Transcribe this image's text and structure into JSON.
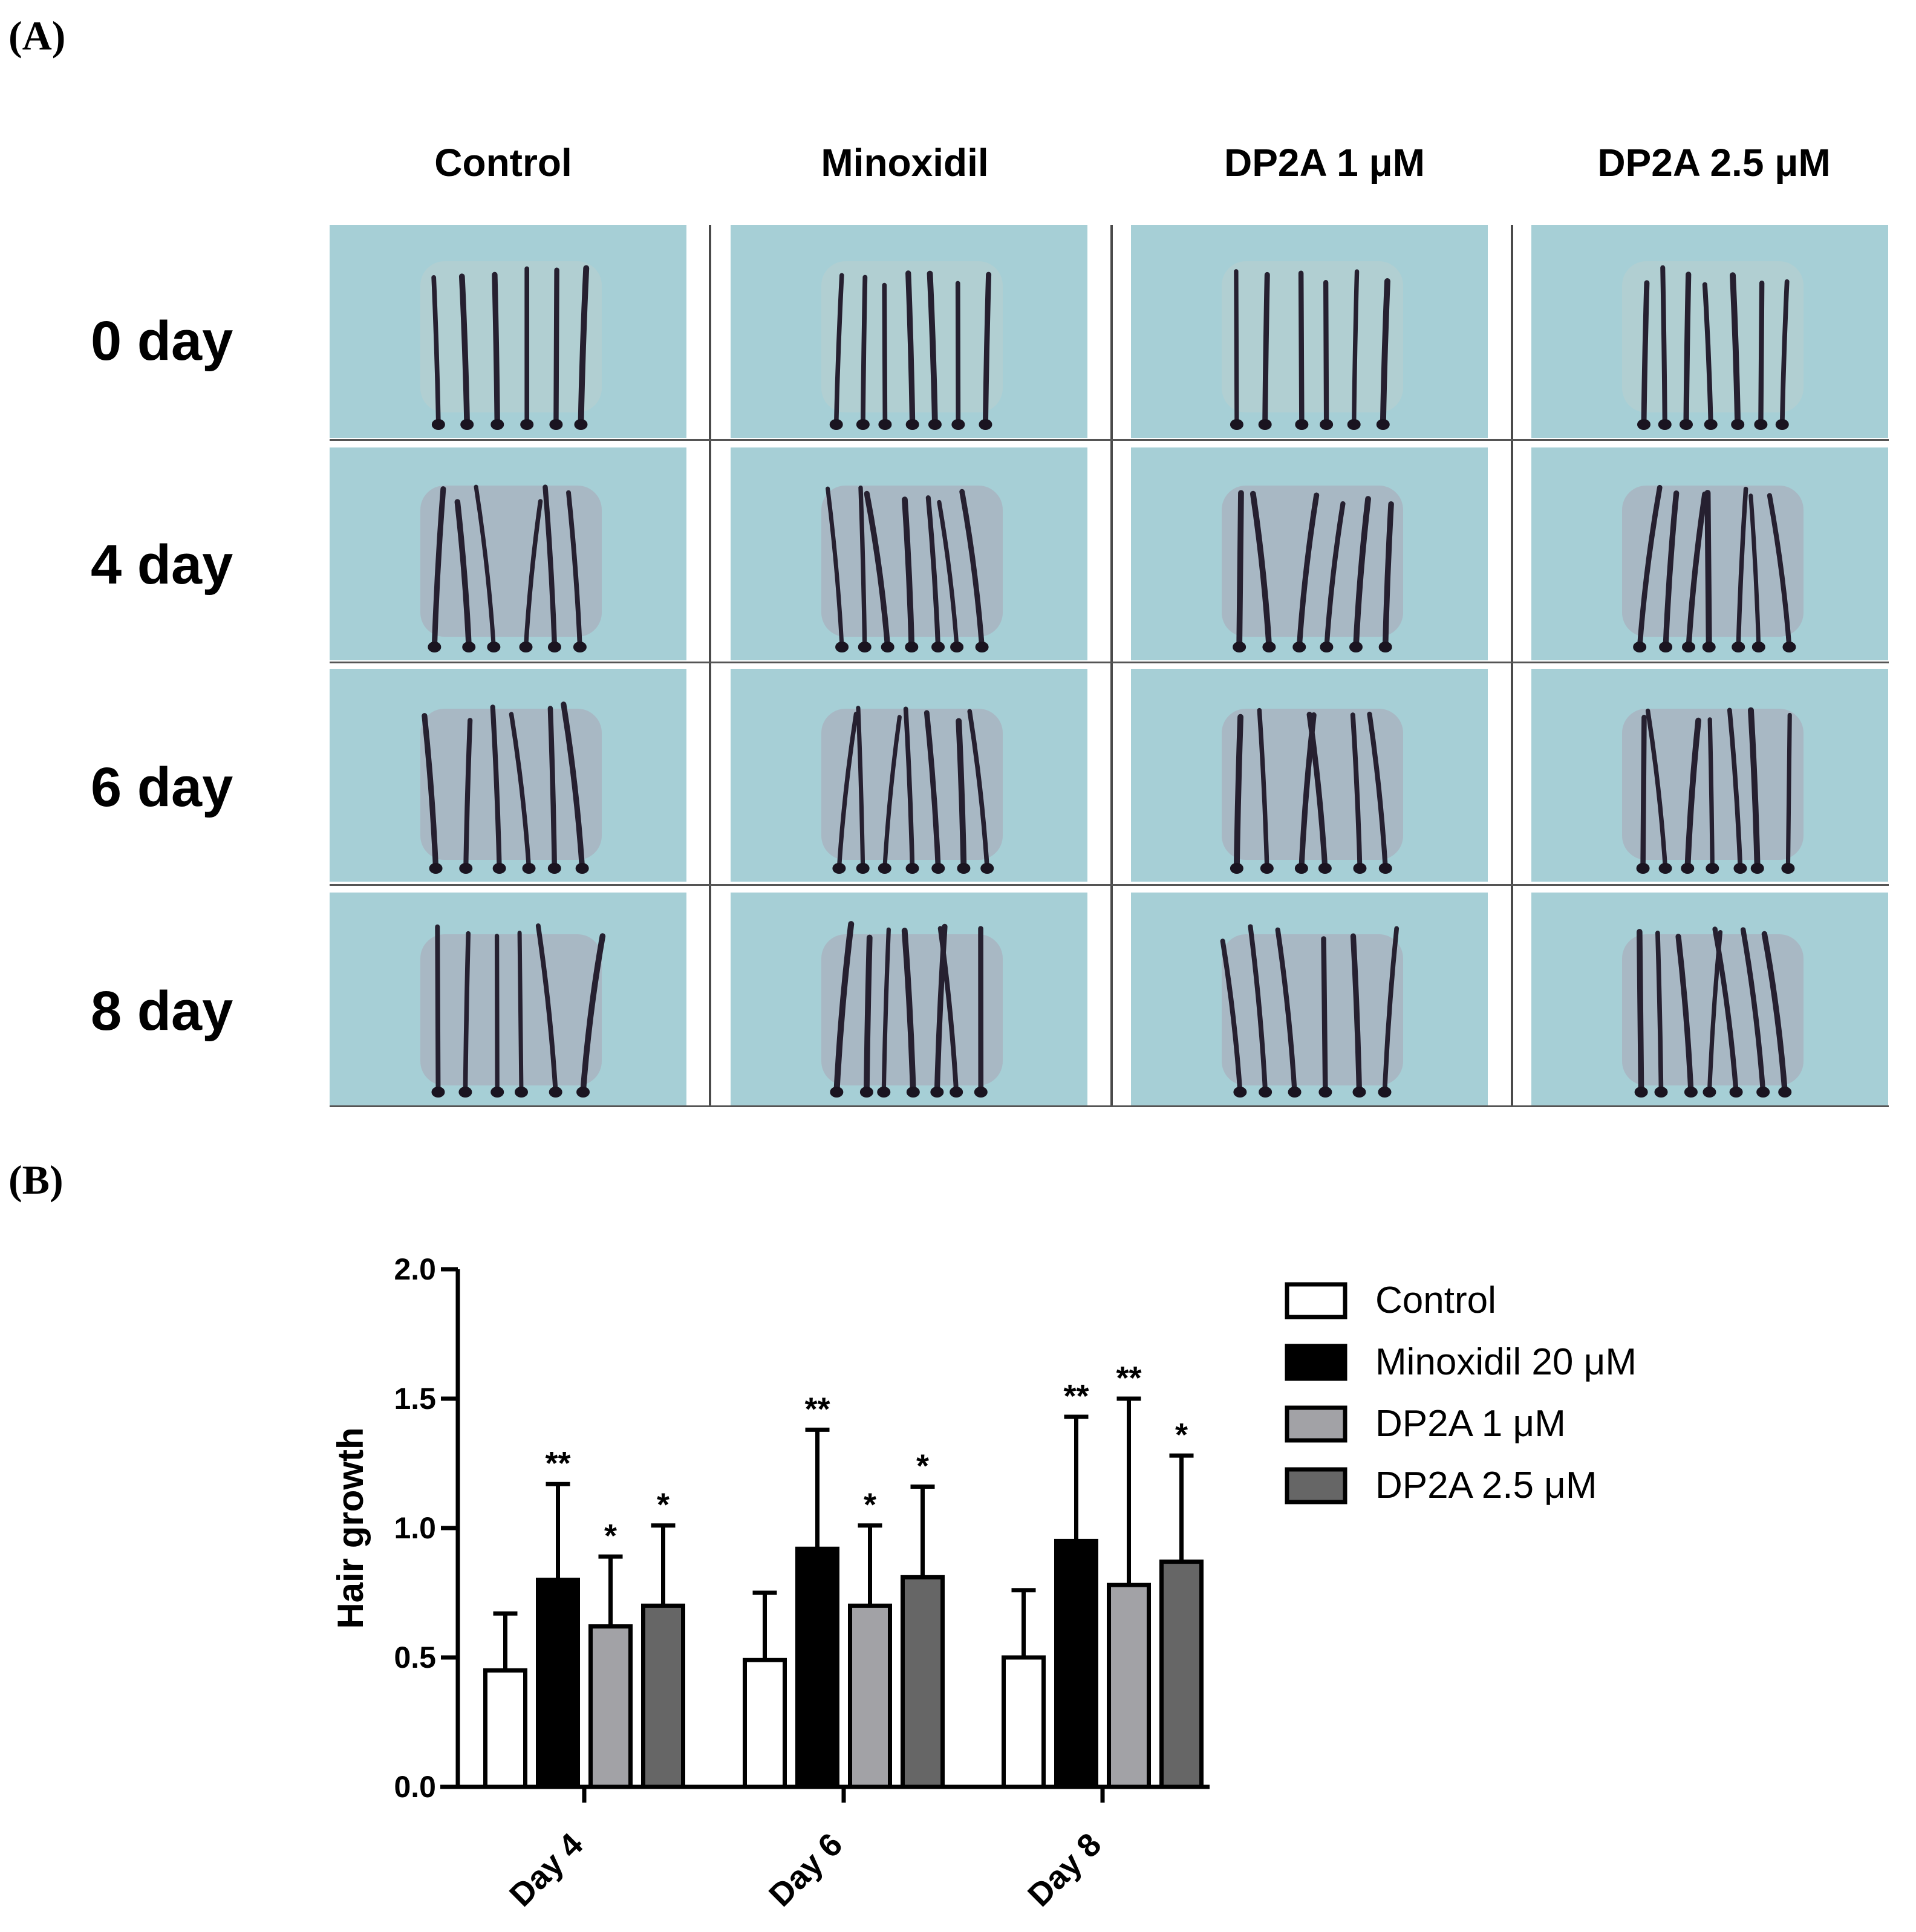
{
  "panels": {
    "a_label": "(A)",
    "b_label": "(B)"
  },
  "photo_grid": {
    "columns": [
      "Control",
      "Minoxidil",
      "DP2A 1 μM",
      "DP2A 2.5 μM"
    ],
    "rows": [
      "0 day",
      "4 day",
      "6 day",
      "8 day"
    ],
    "background_color": "#a6cfd6",
    "hair_color": "#262030"
  },
  "chart_data": {
    "type": "bar",
    "categories": [
      "Day 4",
      "Day 6",
      "Day 8"
    ],
    "ylabel": "Hair growth",
    "xlabel": "",
    "ylim": [
      0,
      2.0
    ],
    "yticks": [
      "0.0",
      "0.5",
      "1.0",
      "1.5",
      "2.0"
    ],
    "series": [
      {
        "name": "Control",
        "color": "#ffffff",
        "values": [
          0.45,
          0.49,
          0.5
        ],
        "errors": [
          0.22,
          0.26,
          0.26
        ],
        "sig": [
          "",
          "",
          ""
        ]
      },
      {
        "name": "Minoxidil 20 μM",
        "color": "#000000",
        "values": [
          0.8,
          0.92,
          0.95
        ],
        "errors": [
          0.37,
          0.46,
          0.48
        ],
        "sig": [
          "**",
          "**",
          "**"
        ]
      },
      {
        "name": "DP2A 1 μM",
        "color": "#a2a2a6",
        "values": [
          0.62,
          0.7,
          0.78
        ],
        "errors": [
          0.27,
          0.31,
          0.72
        ],
        "sig": [
          "*",
          "*",
          "**"
        ]
      },
      {
        "name": "DP2A 2.5 μM",
        "color": "#666666",
        "values": [
          0.7,
          0.81,
          0.87
        ],
        "errors": [
          0.31,
          0.35,
          0.41
        ],
        "sig": [
          "*",
          "*",
          "*"
        ]
      }
    ],
    "legend_position": "top-right"
  }
}
